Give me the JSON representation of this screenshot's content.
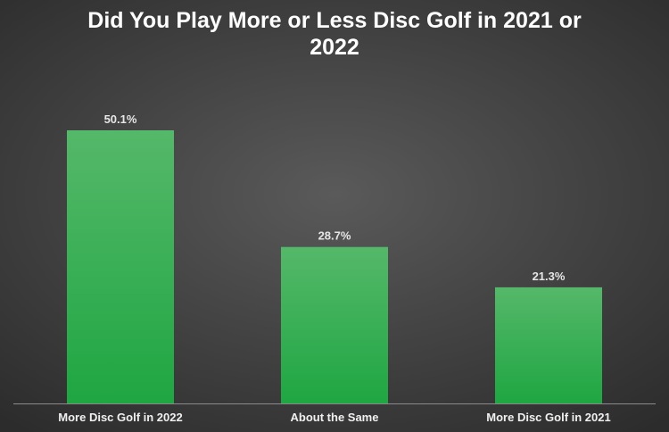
{
  "chart_data": {
    "type": "bar",
    "title": "Did You Play More or Less Disc Golf in 2021 or 2022",
    "categories": [
      "More Disc Golf in 2022",
      "About the Same",
      "More Disc Golf in 2021"
    ],
    "values": [
      50.1,
      28.7,
      21.3
    ],
    "data_labels": [
      "50.1%",
      "28.7%",
      "21.3%"
    ],
    "xlabel": "",
    "ylabel": "",
    "ylim": [
      0,
      60
    ],
    "grid": false,
    "legend": "none",
    "colors": {
      "bar_top": "#55b86a",
      "bar_bottom": "#1fa642",
      "background": "#3f3f3f",
      "axis_line": "#8a8a8a",
      "text": "#ffffff"
    }
  }
}
